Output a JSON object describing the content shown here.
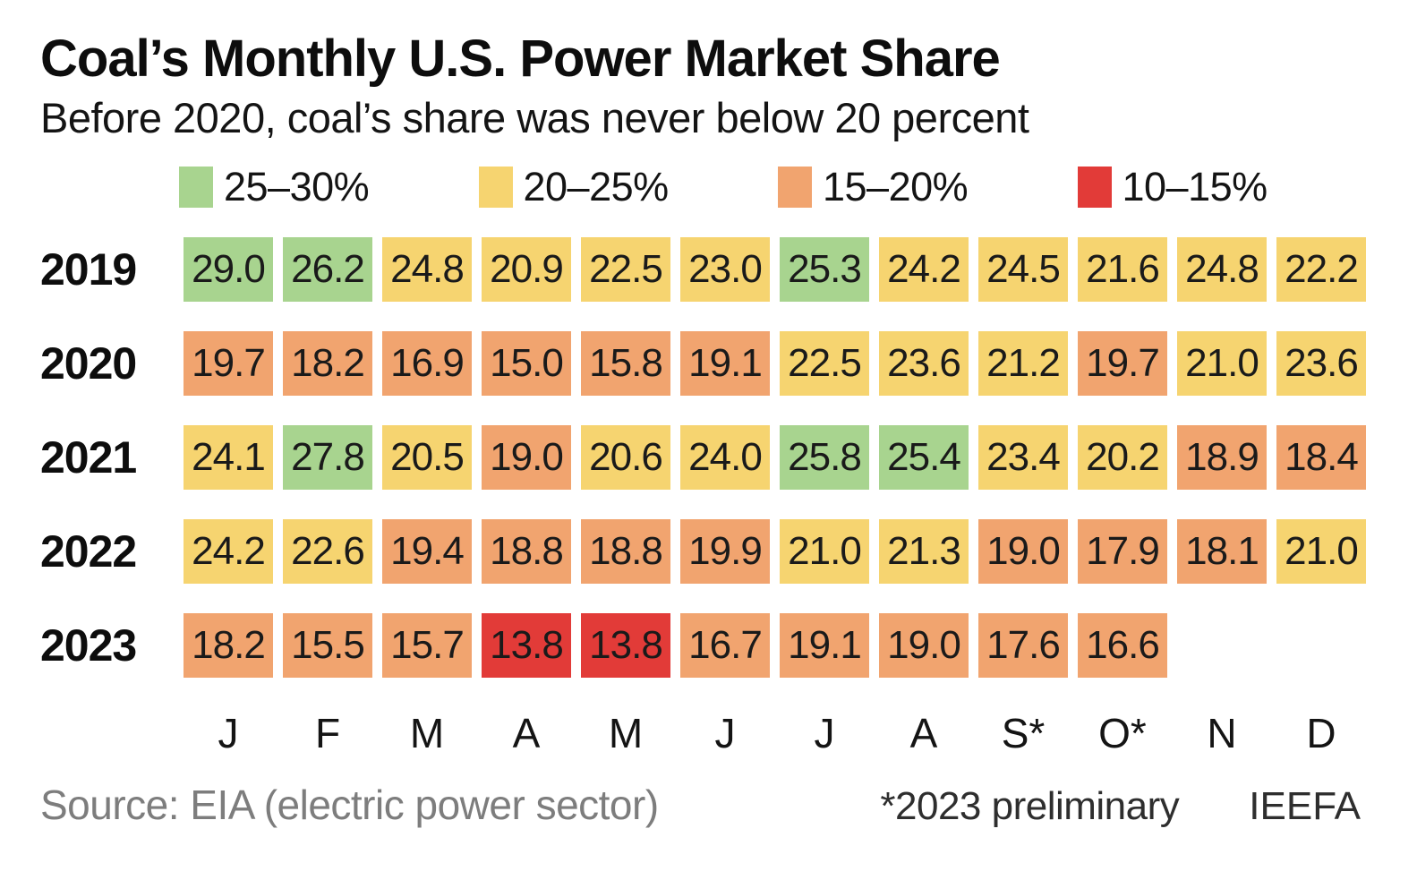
{
  "chart_data": {
    "type": "heatmap",
    "title": "Coal’s Monthly U.S. Power Market Share",
    "subtitle": "Before 2020, coal’s share was never below 20 percent",
    "unit": "percent of U.S. power market",
    "categories": [
      "J",
      "F",
      "M",
      "A",
      "M",
      "J",
      "J",
      "A",
      "S*",
      "O*",
      "N",
      "D"
    ],
    "legend": [
      {
        "label": "25–30%",
        "color": "#a8d48f",
        "min": 25
      },
      {
        "label": "20–25%",
        "color": "#f6d470",
        "min": 20
      },
      {
        "label": "15–20%",
        "color": "#f1a46f",
        "min": 15
      },
      {
        "label": "10–15%",
        "color": "#e23b38",
        "min": 10
      }
    ],
    "series": [
      {
        "name": "2019",
        "values": [
          29.0,
          26.2,
          24.8,
          20.9,
          22.5,
          23.0,
          25.3,
          24.2,
          24.5,
          21.6,
          24.8,
          22.2
        ]
      },
      {
        "name": "2020",
        "values": [
          19.7,
          18.2,
          16.9,
          15.0,
          15.8,
          19.1,
          22.5,
          23.6,
          21.2,
          19.7,
          21.0,
          23.6
        ]
      },
      {
        "name": "2021",
        "values": [
          24.1,
          27.8,
          20.5,
          19.0,
          20.6,
          24.0,
          25.8,
          25.4,
          23.4,
          20.2,
          18.9,
          18.4
        ]
      },
      {
        "name": "2022",
        "values": [
          24.2,
          22.6,
          19.4,
          18.8,
          18.8,
          19.9,
          21.0,
          21.3,
          19.0,
          17.9,
          18.1,
          21.0
        ]
      },
      {
        "name": "2023",
        "values": [
          18.2,
          15.5,
          15.7,
          13.8,
          13.8,
          16.7,
          19.1,
          19.0,
          17.6,
          16.6,
          null,
          null
        ]
      }
    ]
  },
  "footer": {
    "source": "Source: EIA (electric power sector)",
    "preliminary_note": "*2023 preliminary",
    "attribution": "IEEFA"
  }
}
